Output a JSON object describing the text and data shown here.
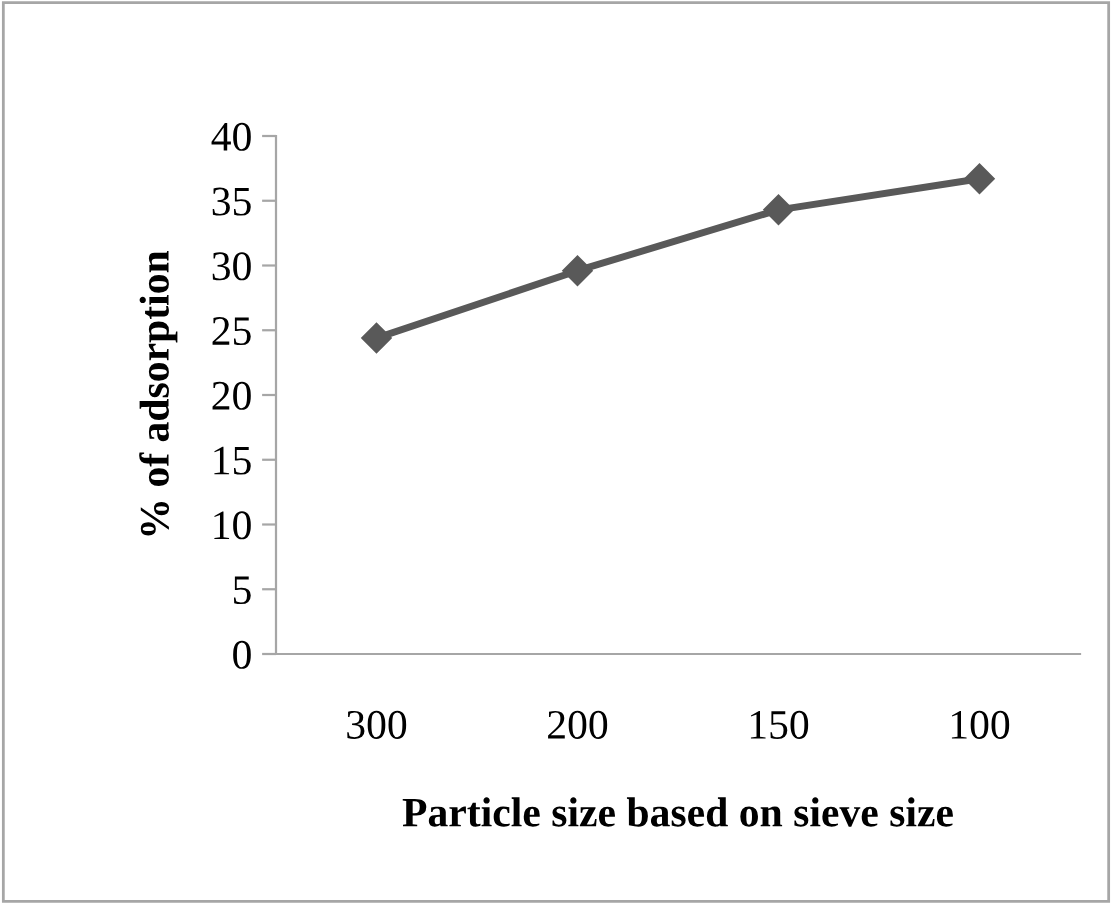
{
  "chart_data": {
    "type": "line",
    "xlabel": "Particle size based on sieve size",
    "ylabel": "% of adsorption",
    "categories": [
      "300",
      "200",
      "150",
      "100"
    ],
    "series": [
      {
        "color": "#595959",
        "values": [
          24.4,
          29.6,
          34.3,
          36.7
        ]
      }
    ],
    "ylim": [
      0,
      40
    ],
    "yticks": [
      0,
      5,
      10,
      15,
      20,
      25,
      30,
      35,
      40
    ],
    "marker": "diamond",
    "line_style": "solid",
    "grid": false,
    "legend": false
  }
}
